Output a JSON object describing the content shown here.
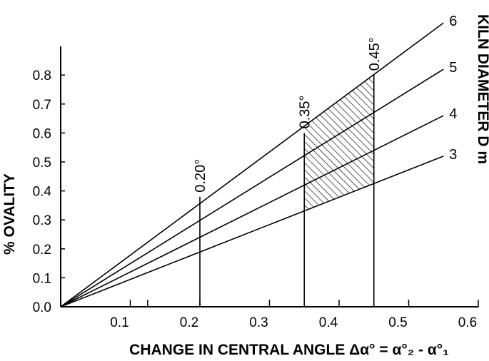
{
  "chart_data": {
    "type": "line",
    "ylabel": "% OVALITY",
    "xlabel": "CHANGE IN CENTRAL ANGLE  Δα° = α°₂ - α°₁",
    "legend_title": "KILN DIAMETER D m",
    "xlim": [
      0,
      0.6
    ],
    "ylim": [
      0,
      0.9
    ],
    "x_ticks": [
      "0.1",
      "0.2",
      "0.3",
      "0.4",
      "0.5",
      "0.6"
    ],
    "y_ticks": [
      "0.0",
      "0.1",
      "0.2",
      "0.3",
      "0.4",
      "0.5",
      "0.6",
      "0.7",
      "0.8"
    ],
    "series": [
      {
        "name": "3",
        "x": [
          0,
          0.55
        ],
        "y": [
          0,
          0.52
        ]
      },
      {
        "name": "4",
        "x": [
          0,
          0.55
        ],
        "y": [
          0,
          0.66
        ]
      },
      {
        "name": "5",
        "x": [
          0,
          0.55
        ],
        "y": [
          0,
          0.82
        ]
      },
      {
        "name": "6",
        "x": [
          0,
          0.55
        ],
        "y": [
          0,
          0.98
        ]
      }
    ],
    "verticals": [
      {
        "x": 0.2,
        "label": "0.20°",
        "ytop": 0.38
      },
      {
        "x": 0.35,
        "label": "0.35°",
        "ytop": 0.6
      },
      {
        "x": 0.45,
        "label": "0.45°",
        "ytop": 0.8
      }
    ],
    "shaded_region": {
      "x_from": 0.35,
      "x_to": 0.45,
      "lower_series": "3",
      "upper_series": "6"
    },
    "minor_tick_x": 0.125
  }
}
